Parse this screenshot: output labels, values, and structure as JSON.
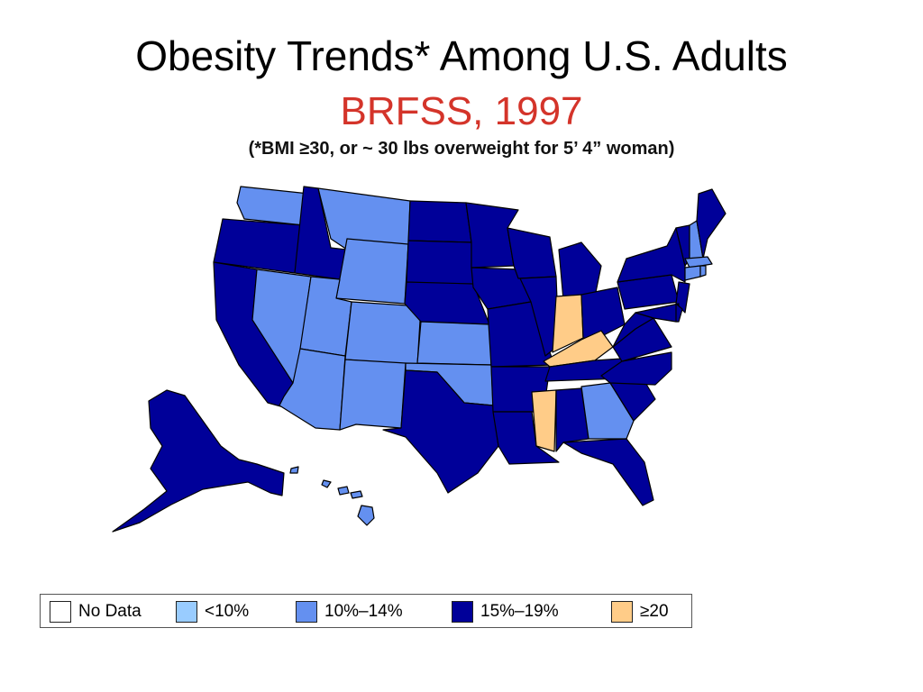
{
  "title": "Obesity Trends* Among U.S. Adults",
  "subtitle": "BRFSS, 1997",
  "note": "(*BMI ≥30, or ~ 30 lbs overweight for 5’ 4” woman)",
  "colors": {
    "no_data": "#ffffff",
    "lt10": "#99ccff",
    "10_14": "#6490f0",
    "15_19": "#000099",
    "ge20": "#ffcc88",
    "title_accent": "#d4342a"
  },
  "legend": [
    {
      "label": "No Data",
      "category": "no_data"
    },
    {
      "label": "<10%",
      "category": "lt10"
    },
    {
      "label": "10%–14%",
      "category": "10_14"
    },
    {
      "label": "15%–19%",
      "category": "15_19"
    },
    {
      "label": "≥20",
      "category": "ge20"
    }
  ],
  "map_data": {
    "states": [
      {
        "id": "WA",
        "category": "10_14"
      },
      {
        "id": "OR",
        "category": "15_19"
      },
      {
        "id": "CA",
        "category": "15_19"
      },
      {
        "id": "NV",
        "category": "10_14"
      },
      {
        "id": "ID",
        "category": "15_19"
      },
      {
        "id": "MT",
        "category": "10_14"
      },
      {
        "id": "WY",
        "category": "10_14"
      },
      {
        "id": "UT",
        "category": "10_14"
      },
      {
        "id": "AZ",
        "category": "10_14"
      },
      {
        "id": "CO",
        "category": "10_14"
      },
      {
        "id": "NM",
        "category": "10_14"
      },
      {
        "id": "ND",
        "category": "15_19"
      },
      {
        "id": "SD",
        "category": "15_19"
      },
      {
        "id": "NE",
        "category": "15_19"
      },
      {
        "id": "KS",
        "category": "10_14"
      },
      {
        "id": "OK",
        "category": "10_14"
      },
      {
        "id": "TX",
        "category": "15_19"
      },
      {
        "id": "MN",
        "category": "15_19"
      },
      {
        "id": "IA",
        "category": "15_19"
      },
      {
        "id": "MO",
        "category": "15_19"
      },
      {
        "id": "AR",
        "category": "15_19"
      },
      {
        "id": "LA",
        "category": "15_19"
      },
      {
        "id": "WI",
        "category": "15_19"
      },
      {
        "id": "IL",
        "category": "15_19"
      },
      {
        "id": "MI",
        "category": "15_19"
      },
      {
        "id": "IN",
        "category": "ge20"
      },
      {
        "id": "OH",
        "category": "15_19"
      },
      {
        "id": "KY",
        "category": "ge20"
      },
      {
        "id": "TN",
        "category": "15_19"
      },
      {
        "id": "MS",
        "category": "ge20"
      },
      {
        "id": "AL",
        "category": "15_19"
      },
      {
        "id": "GA",
        "category": "10_14"
      },
      {
        "id": "FL",
        "category": "15_19"
      },
      {
        "id": "SC",
        "category": "15_19"
      },
      {
        "id": "NC",
        "category": "15_19"
      },
      {
        "id": "VA",
        "category": "15_19"
      },
      {
        "id": "WV",
        "category": "15_19"
      },
      {
        "id": "PA",
        "category": "15_19"
      },
      {
        "id": "NY",
        "category": "15_19"
      },
      {
        "id": "NJ",
        "category": "15_19"
      },
      {
        "id": "DE",
        "category": "15_19"
      },
      {
        "id": "MD",
        "category": "15_19"
      },
      {
        "id": "VT",
        "category": "15_19"
      },
      {
        "id": "NH",
        "category": "10_14"
      },
      {
        "id": "ME",
        "category": "15_19"
      },
      {
        "id": "MA",
        "category": "10_14"
      },
      {
        "id": "CT",
        "category": "10_14"
      },
      {
        "id": "RI",
        "category": "10_14"
      },
      {
        "id": "AK",
        "category": "15_19"
      },
      {
        "id": "HI",
        "category": "10_14"
      }
    ]
  }
}
